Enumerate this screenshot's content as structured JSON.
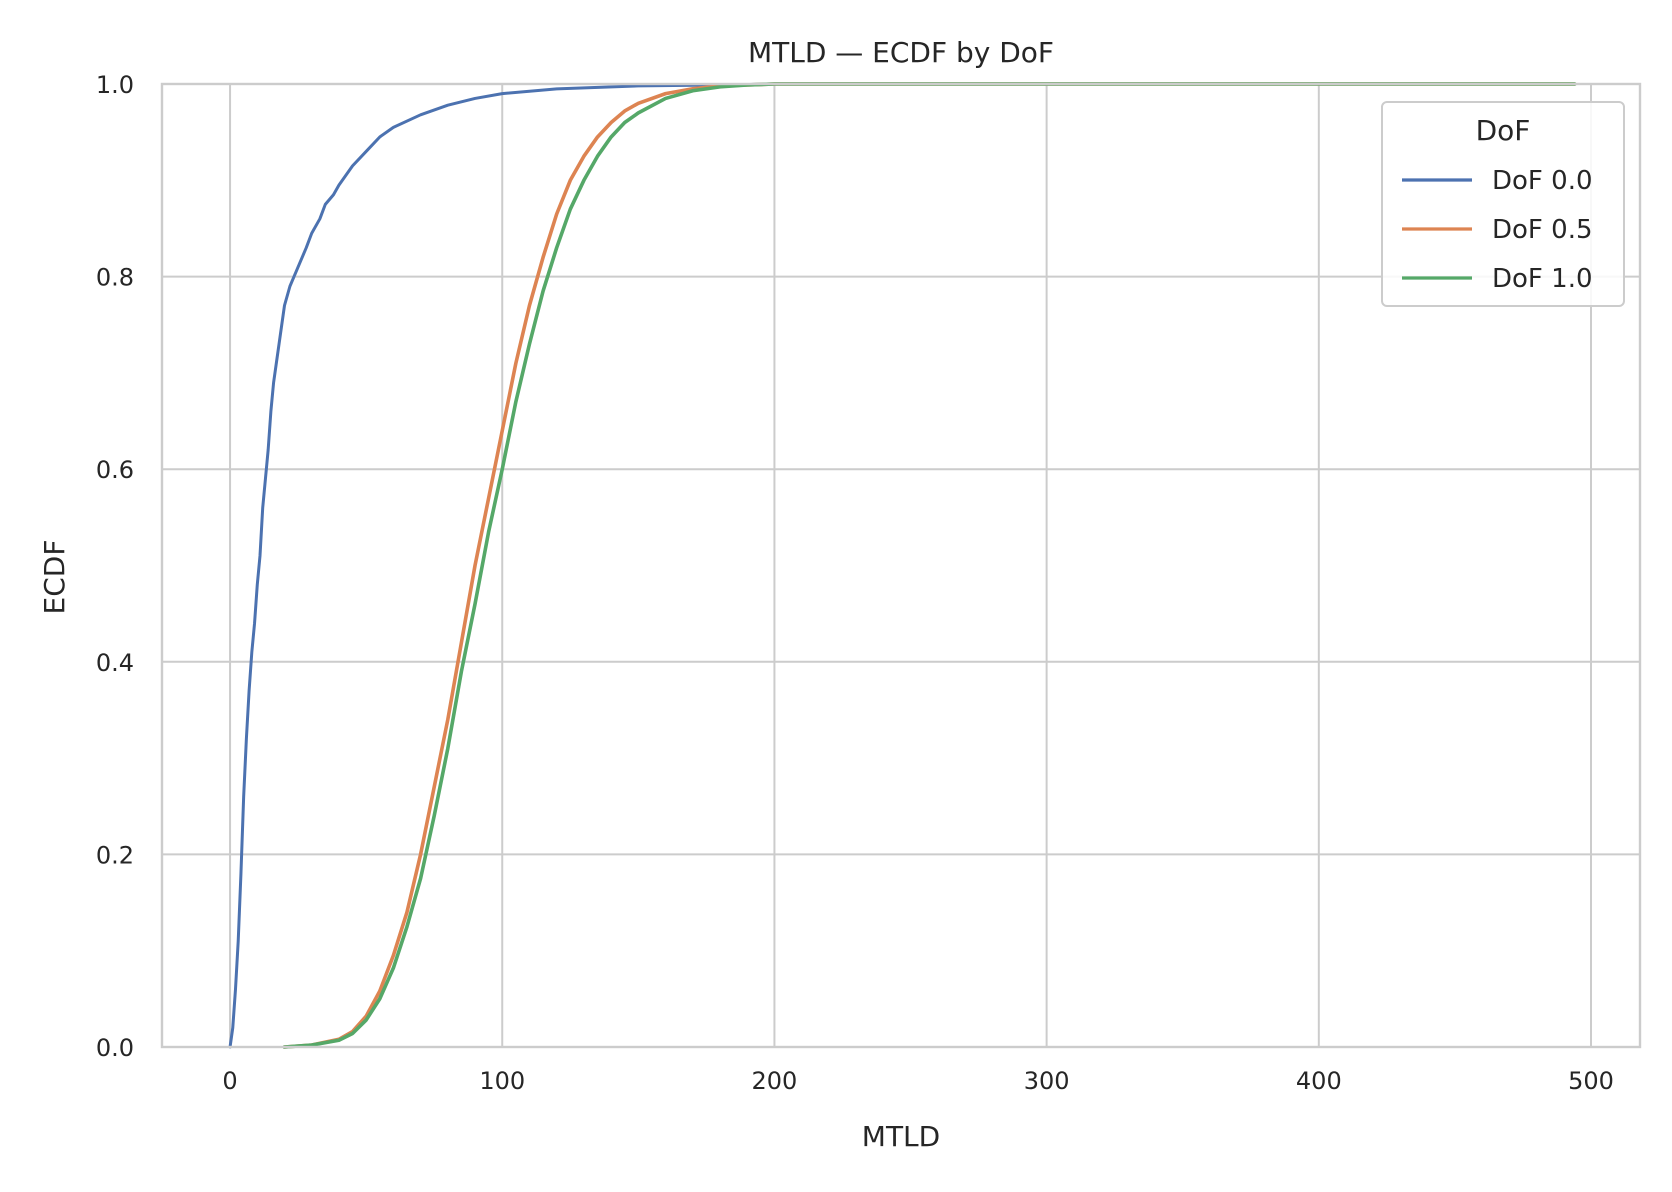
{
  "chart_data": {
    "type": "line",
    "title": "MTLD — ECDF by DoF",
    "xlabel": "MTLD",
    "ylabel": "ECDF",
    "xlim": [
      -25,
      518
    ],
    "ylim": [
      0,
      1
    ],
    "xticks": [
      0,
      100,
      200,
      300,
      400,
      500
    ],
    "xtick_labels": [
      "0",
      "100",
      "200",
      "300",
      "400",
      "500"
    ],
    "yticks": [
      0,
      0.2,
      0.4,
      0.6,
      0.8,
      1.0
    ],
    "ytick_labels": [
      "0.0",
      "0.2",
      "0.4",
      "0.6",
      "0.8",
      "1.0"
    ],
    "grid": true,
    "legend": {
      "title": "DoF",
      "placement": "top-right"
    },
    "series": [
      {
        "name": "DoF 0.0",
        "color": "#4c72b0",
        "x": [
          0,
          1,
          2,
          3,
          4,
          5,
          6,
          7,
          8,
          9,
          10,
          11,
          12,
          13,
          14,
          15,
          16,
          17,
          18,
          19,
          20,
          22,
          25,
          28,
          30,
          33,
          35,
          38,
          40,
          45,
          50,
          55,
          60,
          70,
          80,
          90,
          100,
          120,
          150,
          180,
          200,
          250,
          300,
          400,
          494
        ],
        "y": [
          0,
          0.02,
          0.06,
          0.11,
          0.18,
          0.26,
          0.32,
          0.37,
          0.41,
          0.44,
          0.48,
          0.51,
          0.56,
          0.59,
          0.62,
          0.66,
          0.69,
          0.71,
          0.73,
          0.75,
          0.77,
          0.79,
          0.81,
          0.83,
          0.845,
          0.86,
          0.875,
          0.885,
          0.895,
          0.915,
          0.93,
          0.945,
          0.955,
          0.968,
          0.978,
          0.985,
          0.99,
          0.995,
          0.998,
          0.999,
          1.0,
          1.0,
          1.0,
          1.0,
          1.0
        ]
      },
      {
        "name": "DoF 0.5",
        "color": "#dd8452",
        "x": [
          20,
          30,
          40,
          45,
          50,
          55,
          60,
          65,
          70,
          75,
          80,
          85,
          90,
          95,
          100,
          105,
          110,
          115,
          120,
          125,
          130,
          135,
          140,
          145,
          150,
          160,
          170,
          180,
          190,
          200,
          250,
          300,
          400,
          494
        ],
        "y": [
          0,
          0.002,
          0.008,
          0.016,
          0.032,
          0.058,
          0.095,
          0.14,
          0.2,
          0.27,
          0.34,
          0.42,
          0.5,
          0.57,
          0.64,
          0.71,
          0.77,
          0.82,
          0.865,
          0.9,
          0.925,
          0.945,
          0.96,
          0.972,
          0.98,
          0.99,
          0.995,
          0.998,
          0.999,
          1.0,
          1.0,
          1.0,
          1.0,
          1.0
        ]
      },
      {
        "name": "DoF 1.0",
        "color": "#55a868",
        "x": [
          20,
          30,
          40,
          45,
          50,
          55,
          60,
          65,
          70,
          75,
          80,
          85,
          90,
          95,
          100,
          105,
          110,
          115,
          120,
          125,
          130,
          135,
          140,
          145,
          150,
          160,
          170,
          180,
          190,
          200,
          250,
          300,
          400,
          494
        ],
        "y": [
          0,
          0.002,
          0.007,
          0.014,
          0.028,
          0.05,
          0.082,
          0.125,
          0.175,
          0.24,
          0.31,
          0.39,
          0.46,
          0.535,
          0.6,
          0.67,
          0.73,
          0.785,
          0.83,
          0.87,
          0.9,
          0.925,
          0.945,
          0.96,
          0.97,
          0.985,
          0.993,
          0.997,
          0.999,
          1.0,
          1.0,
          1.0,
          1.0,
          1.0
        ]
      }
    ]
  }
}
